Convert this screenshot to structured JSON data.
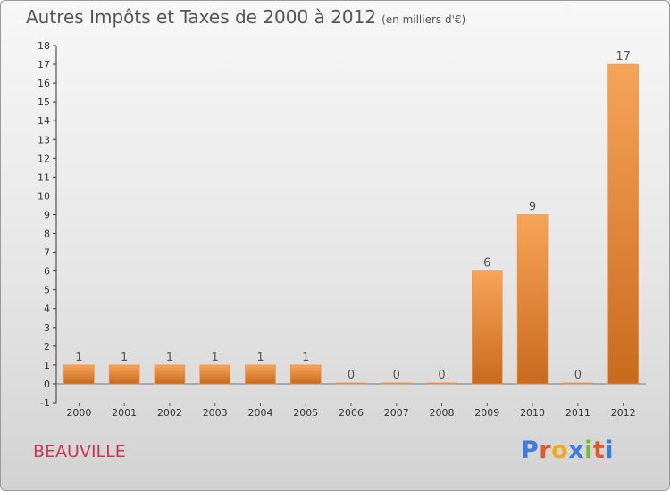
{
  "title": "Autres Impôts et Taxes de 2000 à 2012",
  "subtitle": "(en milliers d'€)",
  "place": "BEAUVILLE",
  "logo": {
    "text": "Proxiti",
    "colors": [
      "#3b7dd8",
      "#e05a2a",
      "#f2a818",
      "#3b7dd8",
      "#79b63a",
      "#e05a2a",
      "#3b7dd8"
    ]
  },
  "colors": {
    "bar_top": "#f7a458",
    "bar_bottom": "#c96a1c",
    "bar_edge": "#e8944a"
  },
  "chart_data": {
    "type": "bar",
    "categories": [
      "2000",
      "2001",
      "2002",
      "2003",
      "2004",
      "2005",
      "2006",
      "2007",
      "2008",
      "2009",
      "2010",
      "2011",
      "2012"
    ],
    "values": [
      1,
      1,
      1,
      1,
      1,
      1,
      0,
      0,
      0,
      6,
      9,
      0,
      17
    ],
    "ylim": [
      -1,
      18
    ],
    "yticks": [
      -1,
      0,
      1,
      2,
      3,
      4,
      5,
      6,
      7,
      8,
      9,
      10,
      11,
      12,
      13,
      14,
      15,
      16,
      17,
      18
    ],
    "grid": false,
    "legend": "none"
  }
}
